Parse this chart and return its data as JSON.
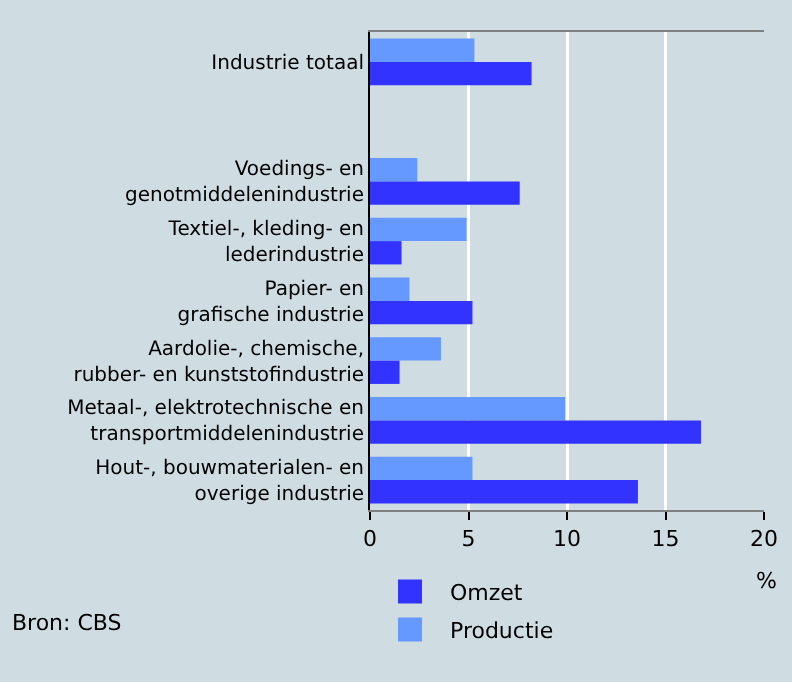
{
  "chart_data": {
    "type": "bar",
    "orientation": "horizontal",
    "categories": [
      "Industrie totaal",
      null,
      "Voedings- en\ngenotmiddelenindustrie",
      "Textiel-, kleding- en\nlederindustrie",
      "Papier- en\ngrafische industrie",
      "Aardolie-, chemische,\nrubber- en kunststofindustrie",
      "Metaal-, elektrotechnische en\ntransportmiddelenindustrie",
      "Hout-, bouwmaterialen- en\noverige industrie"
    ],
    "series": [
      {
        "name": "Omzet",
        "color": "#3333ff",
        "values": [
          8.2,
          null,
          7.6,
          1.6,
          5.2,
          1.5,
          16.8,
          13.6
        ]
      },
      {
        "name": "Productie",
        "color": "#6699ff",
        "values": [
          5.3,
          null,
          2.4,
          4.9,
          2.0,
          3.6,
          9.9,
          5.2
        ]
      }
    ],
    "xlim": [
      0,
      20
    ],
    "xticks": [
      0,
      5,
      10,
      15,
      20
    ],
    "grid": "x",
    "legend": "bottom",
    "annotations": [
      "%",
      "Bron: CBS"
    ]
  }
}
